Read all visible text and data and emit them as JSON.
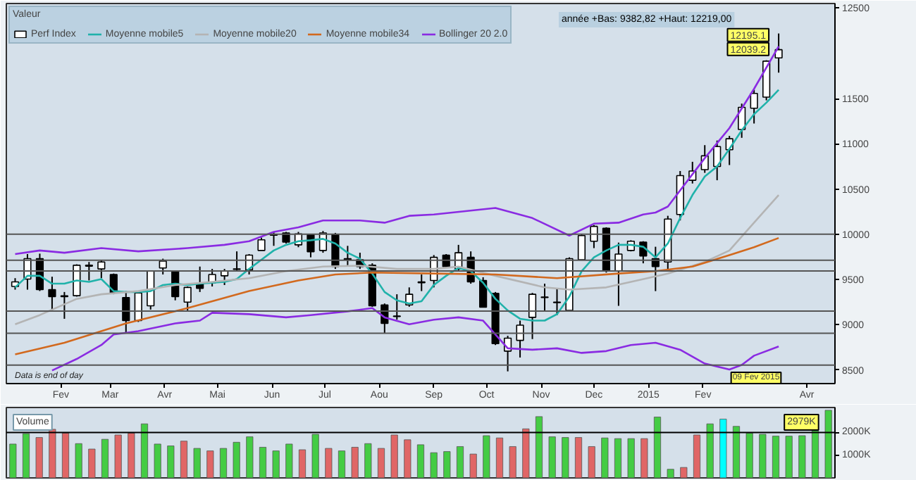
{
  "chart_data": [
    {
      "type": "candlestick",
      "legend": "top",
      "legend_title": "Valeur",
      "grid": false,
      "xlim": [
        "2014-01-01",
        "2015-04-17"
      ],
      "xticks": [
        {
          "value": "2014-02-01",
          "label": "Fev"
        },
        {
          "value": "2014-03-01",
          "label": "Mar"
        },
        {
          "value": "2014-04-01",
          "label": "Avr"
        },
        {
          "value": "2014-05-01",
          "label": "Mai"
        },
        {
          "value": "2014-06-01",
          "label": "Jun"
        },
        {
          "value": "2014-07-01",
          "label": "Jul"
        },
        {
          "value": "2014-08-01",
          "label": "Aou"
        },
        {
          "value": "2014-09-01",
          "label": "Sep"
        },
        {
          "value": "2014-10-01",
          "label": "Oct"
        },
        {
          "value": "2014-11-01",
          "label": "Nov"
        },
        {
          "value": "2014-12-01",
          "label": "Dec"
        },
        {
          "value": "2015-01-01",
          "label": "2015"
        },
        {
          "value": "2015-02-01",
          "label": "Fev"
        },
        {
          "value": "2015-04-01",
          "label": "Avr"
        }
      ],
      "ylim": [
        8350,
        12550
      ],
      "yticks": [
        8500,
        9000,
        9500,
        10000,
        10500,
        11000,
        11500,
        12500
      ],
      "x": [
        "2014-01-06",
        "2014-01-13",
        "2014-01-20",
        "2014-01-27",
        "2014-02-03",
        "2014-02-10",
        "2014-02-17",
        "2014-02-24",
        "2014-03-03",
        "2014-03-10",
        "2014-03-17",
        "2014-03-24",
        "2014-03-31",
        "2014-04-07",
        "2014-04-14",
        "2014-04-21",
        "2014-04-28",
        "2014-05-05",
        "2014-05-12",
        "2014-05-19",
        "2014-05-26",
        "2014-06-02",
        "2014-06-09",
        "2014-06-16",
        "2014-06-23",
        "2014-06-30",
        "2014-07-07",
        "2014-07-14",
        "2014-07-21",
        "2014-07-28",
        "2014-08-04",
        "2014-08-11",
        "2014-08-18",
        "2014-08-25",
        "2014-09-01",
        "2014-09-08",
        "2014-09-15",
        "2014-09-22",
        "2014-09-29",
        "2014-10-06",
        "2014-10-13",
        "2014-10-20",
        "2014-10-27",
        "2014-11-03",
        "2014-11-10",
        "2014-11-17",
        "2014-11-24",
        "2014-12-01",
        "2014-12-08",
        "2014-12-15",
        "2014-12-22",
        "2014-12-29",
        "2015-01-05",
        "2015-01-12",
        "2015-01-19",
        "2015-01-26",
        "2015-02-02",
        "2015-02-09",
        "2015-02-16",
        "2015-02-23",
        "2015-03-02",
        "2015-03-09",
        "2015-03-16"
      ],
      "series": [
        {
          "type": "candlestick",
          "name": "Perf Index",
          "color": "#000000",
          "ohlc": [
            [
              9423,
              9515,
              9388,
              9474
            ],
            [
              9505,
              9781,
              9388,
              9730
            ],
            [
              9730,
              9786,
              9373,
              9388
            ],
            [
              9388,
              9531,
              9158,
              9311
            ],
            [
              9320,
              9362,
              9066,
              9311
            ],
            [
              9321,
              9668,
              9311,
              9658
            ],
            [
              9648,
              9694,
              9490,
              9658
            ],
            [
              9617,
              9719,
              9515,
              9694
            ],
            [
              9556,
              9566,
              9337,
              9352
            ],
            [
              9301,
              9372,
              8903,
              9046
            ],
            [
              9046,
              9362,
              9031,
              9352
            ],
            [
              9209,
              9602,
              9168,
              9592
            ],
            [
              9628,
              9730,
              9556,
              9704
            ],
            [
              9592,
              9602,
              9270,
              9311
            ],
            [
              9250,
              9423,
              9158,
              9413
            ],
            [
              9454,
              9643,
              9362,
              9403
            ],
            [
              9464,
              9617,
              9423,
              9556
            ],
            [
              9541,
              9617,
              9439,
              9592
            ],
            [
              9612,
              9811,
              9592,
              9617
            ],
            [
              9607,
              9781,
              9556,
              9770
            ],
            [
              9821,
              9964,
              9821,
              9939
            ],
            [
              9990,
              10026,
              9872,
              10000
            ],
            [
              10015,
              10026,
              9898,
              9913
            ],
            [
              9883,
              10026,
              9857,
              10005
            ],
            [
              9995,
              10005,
              9745,
              9806
            ],
            [
              9821,
              10036,
              9796,
              10015
            ],
            [
              10000,
              10015,
              9617,
              9643
            ],
            [
              9730,
              9872,
              9658,
              9719
            ],
            [
              9719,
              9796,
              9617,
              9643
            ],
            [
              9658,
              9679,
              9199,
              9209
            ],
            [
              9219,
              9235,
              8903,
              9015
            ],
            [
              9097,
              9337,
              9056,
              9092
            ],
            [
              9219,
              9413,
              9199,
              9337
            ],
            [
              9474,
              9556,
              9372,
              9464
            ],
            [
              9490,
              9770,
              9413,
              9745
            ],
            [
              9770,
              9781,
              9628,
              9643
            ],
            [
              9617,
              9883,
              9592,
              9796
            ],
            [
              9745,
              9811,
              9454,
              9474
            ],
            [
              9490,
              9525,
              9194,
              9194
            ],
            [
              9347,
              9362,
              8776,
              8791
            ],
            [
              8709,
              8878,
              8485,
              8852
            ],
            [
              8827,
              9046,
              8638,
              8995
            ],
            [
              9082,
              9352,
              8842,
              9337
            ],
            [
              9306,
              9454,
              9158,
              9301
            ],
            [
              9250,
              9398,
              9107,
              9245
            ],
            [
              9158,
              9745,
              9148,
              9730
            ],
            [
              9719,
              10000,
              9719,
              9985
            ],
            [
              9923,
              10102,
              9847,
              10087
            ],
            [
              10066,
              10077,
              9577,
              9592
            ],
            [
              9592,
              9908,
              9209,
              9781
            ],
            [
              9821,
              9934,
              9811,
              9923
            ],
            [
              9913,
              9923,
              9679,
              9760
            ],
            [
              9730,
              9862,
              9372,
              9643
            ],
            [
              9694,
              10204,
              9617,
              10168
            ],
            [
              10219,
              10699,
              10153,
              10648
            ],
            [
              10597,
              10801,
              10561,
              10699
            ],
            [
              10714,
              10985,
              10679,
              10867
            ],
            [
              10750,
              11036,
              10597,
              10969
            ],
            [
              10934,
              11087,
              10765,
              11056
            ],
            [
              11158,
              11444,
              11066,
              11403
            ],
            [
              11393,
              11597,
              11224,
              11556
            ],
            [
              11515,
              11923,
              11480,
              11913
            ],
            [
              11949,
              12219,
              11786,
              12039.2
            ]
          ],
          "colors": [
            "#ffffff",
            "#ffffff",
            "#000000",
            "#000000",
            "#000000",
            "#ffffff",
            "#ffffff",
            "#ffffff",
            "#000000",
            "#000000",
            "#ffffff",
            "#ffffff",
            "#ffffff",
            "#000000",
            "#ffffff",
            "#000000",
            "#ffffff",
            "#ffffff",
            "#ffffff",
            "#ffffff",
            "#ffffff",
            "#ffffff",
            "#000000",
            "#ffffff",
            "#000000",
            "#ffffff",
            "#000000",
            "#000000",
            "#000000",
            "#000000",
            "#000000",
            "#000000",
            "#ffffff",
            "#000000",
            "#ffffff",
            "#000000",
            "#ffffff",
            "#000000",
            "#000000",
            "#000000",
            "#ffffff",
            "#ffffff",
            "#ffffff",
            "#000000",
            "#000000",
            "#ffffff",
            "#ffffff",
            "#ffffff",
            "#000000",
            "#ffffff",
            "#ffffff",
            "#000000",
            "#000000",
            "#ffffff",
            "#ffffff",
            "#ffffff",
            "#ffffff",
            "#ffffff",
            "#ffffff",
            "#ffffff",
            "#ffffff",
            "#ffffff",
            "#ffffff"
          ]
        },
        {
          "type": "line",
          "name": "Moyenne mobile5",
          "color": "#20b2aa",
          "values": [
            9413,
            9541,
            9541,
            9454,
            9454,
            9490,
            9474,
            9505,
            9372,
            9362,
            9362,
            9372,
            9439,
            9454,
            9439,
            9454,
            9464,
            9474,
            9505,
            9617,
            9719,
            9821,
            9883,
            9923,
            9934,
            9949,
            9898,
            9796,
            9730,
            9566,
            9362,
            9270,
            9235,
            9260,
            9440,
            9541,
            9628,
            9592,
            9464,
            9286,
            9158,
            9066,
            9046,
            9046,
            9117,
            9311,
            9592,
            9745,
            9821,
            9883,
            9883,
            9862,
            9745,
            9898,
            10179,
            10434,
            10638,
            10750,
            10944,
            11148,
            11327,
            11454,
            11597
          ]
        },
        {
          "type": "line",
          "name": "Moyenne mobile20",
          "color": "#b4b4b4",
          "x": [
            "2014-01-06",
            "2014-01-20",
            "2014-02-10",
            "2014-02-24",
            "2014-03-17",
            "2014-04-07",
            "2014-04-28",
            "2014-05-19",
            "2014-06-09",
            "2014-06-30",
            "2014-07-21",
            "2014-08-11",
            "2014-09-01",
            "2014-09-15",
            "2014-10-06",
            "2014-11-03",
            "2014-11-17",
            "2014-12-08",
            "2014-12-22",
            "2015-01-12",
            "2015-02-02",
            "2015-02-16",
            "2015-03-02",
            "2015-03-16"
          ],
          "values": [
            9005,
            9107,
            9286,
            9337,
            9372,
            9439,
            9474,
            9515,
            9592,
            9643,
            9653,
            9617,
            9617,
            9643,
            9541,
            9413,
            9388,
            9413,
            9474,
            9566,
            9694,
            9821,
            10128,
            10434
          ]
        },
        {
          "type": "line",
          "name": "Moyenne mobile34",
          "color": "#d2691e",
          "x": [
            "2014-01-06",
            "2014-02-03",
            "2014-03-10",
            "2014-04-14",
            "2014-05-19",
            "2014-06-16",
            "2014-07-07",
            "2014-07-28",
            "2014-09-01",
            "2014-10-06",
            "2014-11-10",
            "2014-12-15",
            "2015-01-05",
            "2015-01-26",
            "2015-02-16",
            "2015-03-02",
            "2015-03-16"
          ],
          "values": [
            8673,
            8801,
            9015,
            9184,
            9372,
            9490,
            9556,
            9577,
            9566,
            9556,
            9515,
            9566,
            9592,
            9643,
            9770,
            9857,
            9959
          ]
        },
        {
          "type": "line",
          "name": "Bollinger 20 2.0",
          "color": "#8a2be2",
          "x": [
            "2014-01-06",
            "2014-01-20",
            "2014-02-03",
            "2014-02-24",
            "2014-03-17",
            "2014-04-14",
            "2014-05-05",
            "2014-05-19",
            "2014-06-02",
            "2014-06-16",
            "2014-06-30",
            "2014-07-21",
            "2014-08-04",
            "2014-08-18",
            "2014-09-01",
            "2014-10-06",
            "2014-10-27",
            "2014-11-17",
            "2014-12-01",
            "2014-12-15",
            "2014-12-29",
            "2015-01-05",
            "2015-01-12",
            "2015-01-19",
            "2015-02-02",
            "2015-02-16",
            "2015-03-02",
            "2015-03-16"
          ],
          "values": [
            9781,
            9821,
            9796,
            9847,
            9811,
            9847,
            9883,
            9923,
            10026,
            10077,
            10153,
            10153,
            10128,
            10204,
            10219,
            10291,
            10179,
            9985,
            10117,
            10128,
            10219,
            10240,
            10306,
            10485,
            10842,
            11173,
            11607,
            12077
          ]
        },
        {
          "type": "line",
          "color": "#8a2be2",
          "x": [
            "2014-01-27",
            "2014-02-10",
            "2014-02-24",
            "2014-03-03",
            "2014-03-17",
            "2014-04-07",
            "2014-04-21",
            "2014-04-28",
            "2014-05-19",
            "2014-06-09",
            "2014-06-23",
            "2014-07-14",
            "2014-07-28",
            "2014-08-04",
            "2014-08-18",
            "2014-09-01",
            "2014-09-15",
            "2014-09-29",
            "2014-10-13",
            "2014-10-27",
            "2014-11-10",
            "2014-11-24",
            "2014-12-08",
            "2014-12-22",
            "2015-01-05",
            "2015-01-19",
            "2015-02-02",
            "2015-02-16",
            "2015-02-23",
            "2015-03-02",
            "2015-03-16"
          ],
          "values": [
            8495,
            8622,
            8776,
            8893,
            8929,
            9015,
            9046,
            9133,
            9117,
            9082,
            9107,
            9148,
            9184,
            9082,
            9005,
            9056,
            9082,
            9046,
            8740,
            8724,
            8740,
            8689,
            8709,
            8776,
            8801,
            8724,
            8571,
            8505,
            8556,
            8658,
            8760
          ]
        }
      ],
      "ref_lines": [
        {
          "axis": "y",
          "value": 10000,
          "color": "#555555"
        },
        {
          "axis": "y",
          "value": 9713,
          "color": "#555555"
        },
        {
          "axis": "y",
          "value": 9595,
          "color": "#555555"
        },
        {
          "axis": "y",
          "value": 9151,
          "color": "#555555"
        },
        {
          "axis": "y",
          "value": 8906,
          "color": "#555555"
        },
        {
          "axis": "y",
          "value": 8554,
          "color": "#555555"
        }
      ],
      "annotations": [
        "année +Bas: 9382,82 +Haut: 12219,00",
        "Data is end of day",
        {
          "text": "12195.1",
          "x": "2015-03-16",
          "y": 12195.1
        },
        {
          "text": "12039.2",
          "x": "2015-03-16",
          "y": 12039.2
        },
        "09 Fev 2015"
      ]
    },
    {
      "type": "bar",
      "title": "Volume",
      "grid": false,
      "tick_labels": "y",
      "ylim": [
        0,
        3100
      ],
      "yticks": [
        {
          "value": 1000,
          "label": "1000K"
        },
        {
          "value": 2000,
          "label": "2000K"
        }
      ],
      "categories": [
        null,
        null,
        null,
        null,
        null,
        null,
        null,
        null,
        null,
        null,
        null,
        null,
        null,
        null,
        null,
        null,
        null,
        null,
        null,
        null,
        null,
        null,
        null,
        null,
        null,
        null,
        null,
        null,
        null,
        null,
        null,
        null,
        null,
        null,
        null,
        null,
        null,
        null,
        null,
        null,
        null,
        null,
        null,
        null,
        null,
        null,
        null,
        null,
        null,
        null,
        null,
        null,
        null,
        null,
        null,
        null,
        null,
        null,
        null,
        null,
        null,
        null,
        null
      ],
      "values": [
        1490,
        1950,
        1780,
        2140,
        1970,
        1510,
        1270,
        1700,
        1890,
        1970,
        2380,
        1490,
        1410,
        1620,
        1300,
        1190,
        1300,
        1570,
        1810,
        1350,
        1190,
        1490,
        1240,
        1920,
        1300,
        1190,
        1350,
        1510,
        1300,
        1890,
        1680,
        1460,
        1110,
        1160,
        1380,
        1050,
        1860,
        1760,
        1380,
        2160,
        2700,
        1810,
        1780,
        1780,
        1380,
        1760,
        1730,
        1730,
        1730,
        2680,
        380,
        460,
        1890,
        2380,
        2590,
        2270,
        1970,
        1920,
        1840,
        1840,
        1860,
        2080,
        2979
      ],
      "colors": [
        "#44cc44",
        "#44cc44",
        "#e06666",
        "#e06666",
        "#e06666",
        "#44cc44",
        "#e06666",
        "#44cc44",
        "#e06666",
        "#e06666",
        "#44cc44",
        "#44cc44",
        "#44cc44",
        "#e06666",
        "#44cc44",
        "#e06666",
        "#44cc44",
        "#44cc44",
        "#44cc44",
        "#44cc44",
        "#44cc44",
        "#44cc44",
        "#e06666",
        "#44cc44",
        "#e06666",
        "#44cc44",
        "#e06666",
        "#44cc44",
        "#e06666",
        "#e06666",
        "#e06666",
        "#44cc44",
        "#44cc44",
        "#44cc44",
        "#44cc44",
        "#e06666",
        "#44cc44",
        "#e06666",
        "#e06666",
        "#e06666",
        "#44cc44",
        "#44cc44",
        "#44cc44",
        "#e06666",
        "#e06666",
        "#44cc44",
        "#44cc44",
        "#44cc44",
        "#e06666",
        "#44cc44",
        "#44cc44",
        "#e06666",
        "#e06666",
        "#44cc44",
        "#00ffff",
        "#44cc44",
        "#44cc44",
        "#44cc44",
        "#44cc44",
        "#44cc44",
        "#44cc44",
        "#44cc44",
        "#44cc44"
      ],
      "ref_lines": [
        {
          "axis": "y",
          "value": 2000,
          "color": "#000000"
        }
      ],
      "annotations": [
        "2979K"
      ]
    }
  ]
}
